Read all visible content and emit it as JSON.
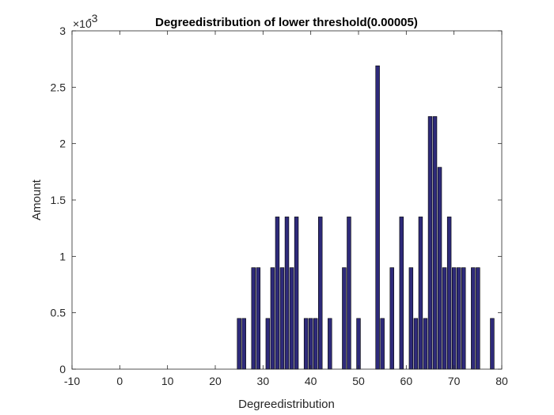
{
  "chart_data": {
    "type": "bar",
    "title": "Degreedistribution of lower threshold(0.00005)",
    "xlabel": "Degreedistribution",
    "ylabel": "Amount",
    "xlim": [
      -10,
      80
    ],
    "ylim": [
      0,
      0.003
    ],
    "xticks": [
      -10,
      0,
      10,
      20,
      30,
      40,
      50,
      60,
      70,
      80
    ],
    "xtick_labels": [
      "-10",
      "0",
      "10",
      "20",
      "30",
      "40",
      "50",
      "60",
      "70",
      "80"
    ],
    "yticks": [
      0,
      0.0005,
      0.001,
      0.0015,
      0.002,
      0.0025,
      0.003
    ],
    "ytick_labels": [
      "0",
      "0.5",
      "1",
      "1.5",
      "2",
      "2.5",
      "3"
    ],
    "y_exponent_base": "×10",
    "y_exponent_power": "-3",
    "grid": false,
    "bar_color": "#2e2a7a",
    "x": [
      25,
      26,
      28,
      29,
      31,
      32,
      33,
      34,
      35,
      36,
      37,
      39,
      40,
      41,
      42,
      44,
      47,
      48,
      50,
      54,
      55,
      57,
      59,
      61,
      62,
      63,
      64,
      65,
      66,
      67,
      68,
      69,
      70,
      71,
      72,
      74,
      75,
      78
    ],
    "values": [
      0.00045,
      0.00045,
      0.0009,
      0.0009,
      0.00045,
      0.0009,
      0.00135,
      0.0009,
      0.00135,
      0.0009,
      0.00135,
      0.00045,
      0.00045,
      0.00045,
      0.00135,
      0.00045,
      0.0009,
      0.00135,
      0.00045,
      0.00269,
      0.00045,
      0.0009,
      0.00135,
      0.0009,
      0.00045,
      0.00135,
      0.00045,
      0.00224,
      0.00224,
      0.00179,
      0.0009,
      0.00135,
      0.0009,
      0.0009,
      0.0009,
      0.0009,
      0.0009,
      0.00045
    ]
  }
}
